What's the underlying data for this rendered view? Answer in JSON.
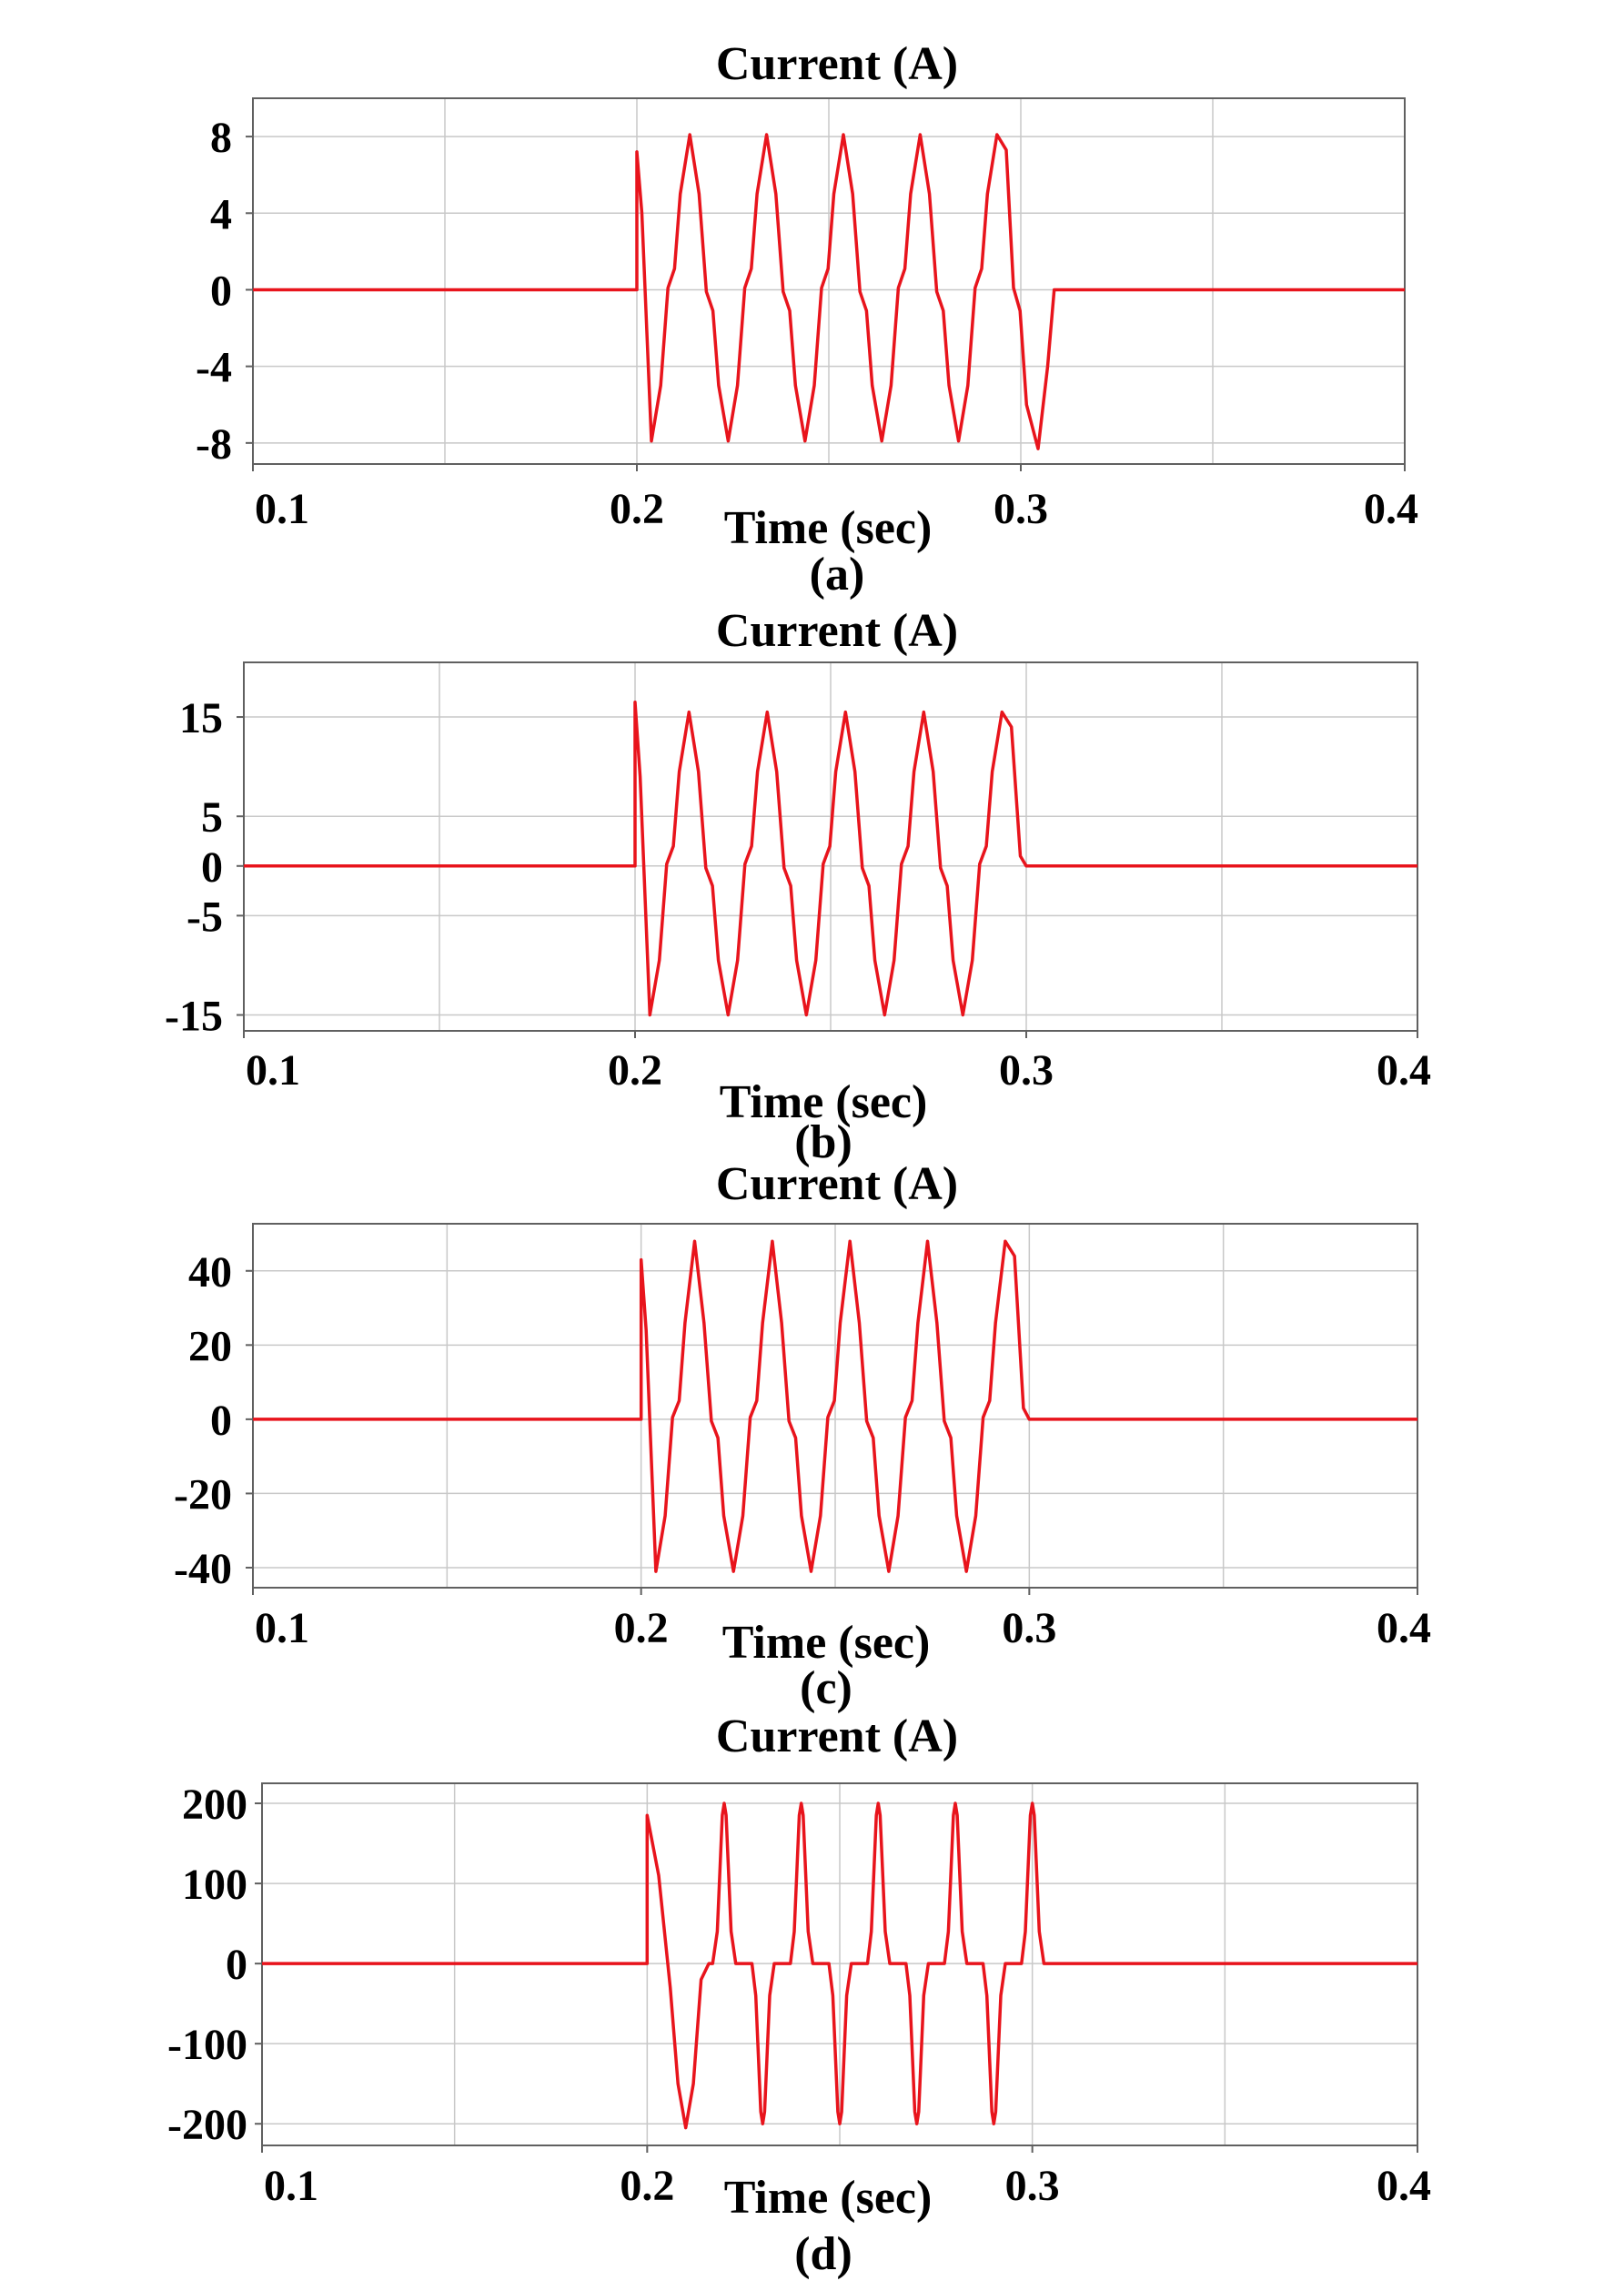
{
  "chart_data": [
    {
      "type": "line",
      "title": "Current (A)",
      "xlabel": "Time (sec)",
      "caption": "(a)",
      "xlim": [
        0.1,
        0.4
      ],
      "ylim": [
        -9.1,
        10.0
      ],
      "x_ticks": [
        "0.1",
        "0.2",
        "0.3",
        "0.4"
      ],
      "y_ticks": [
        {
          "label": "8",
          "value": 8
        },
        {
          "label": "4",
          "value": 4
        },
        {
          "label": "0",
          "value": 0
        },
        {
          "label": "-4",
          "value": -4
        },
        {
          "label": "-8",
          "value": -8
        }
      ],
      "grid": true,
      "color": "#e8141c",
      "points": [
        [
          0.1,
          0
        ],
        [
          0.2,
          0
        ],
        [
          0.2,
          7.2
        ],
        [
          0.2013,
          4
        ],
        [
          0.2038,
          -7.9
        ],
        [
          0.2062,
          -5
        ],
        [
          0.2081,
          0.1
        ],
        [
          0.2098,
          1.1
        ],
        [
          0.2113,
          5
        ],
        [
          0.2138,
          8.1
        ],
        [
          0.2162,
          5
        ],
        [
          0.2181,
          -0.1
        ],
        [
          0.2198,
          -1.1
        ],
        [
          0.2213,
          -5
        ],
        [
          0.2238,
          -7.9
        ],
        [
          0.2262,
          -5
        ],
        [
          0.2281,
          0.1
        ],
        [
          0.2298,
          1.1
        ],
        [
          0.2313,
          5
        ],
        [
          0.2338,
          8.1
        ],
        [
          0.2362,
          5
        ],
        [
          0.2381,
          -0.1
        ],
        [
          0.2398,
          -1.1
        ],
        [
          0.2413,
          -5
        ],
        [
          0.2438,
          -7.9
        ],
        [
          0.2462,
          -5
        ],
        [
          0.2481,
          0.1
        ],
        [
          0.2498,
          1.1
        ],
        [
          0.2513,
          5
        ],
        [
          0.2538,
          8.1
        ],
        [
          0.2562,
          5
        ],
        [
          0.2581,
          -0.1
        ],
        [
          0.2598,
          -1.1
        ],
        [
          0.2613,
          -5
        ],
        [
          0.2638,
          -7.9
        ],
        [
          0.2662,
          -5
        ],
        [
          0.2681,
          0.1
        ],
        [
          0.2698,
          1.1
        ],
        [
          0.2713,
          5
        ],
        [
          0.2738,
          8.1
        ],
        [
          0.2762,
          5
        ],
        [
          0.2781,
          -0.1
        ],
        [
          0.2798,
          -1.1
        ],
        [
          0.2813,
          -5
        ],
        [
          0.2838,
          -7.9
        ],
        [
          0.2862,
          -5
        ],
        [
          0.2881,
          0.1
        ],
        [
          0.2898,
          1.1
        ],
        [
          0.2913,
          5
        ],
        [
          0.2938,
          8.1
        ],
        [
          0.2962,
          7.3
        ],
        [
          0.2981,
          0.1
        ],
        [
          0.2998,
          -1.1
        ],
        [
          0.3015,
          -6
        ],
        [
          0.3045,
          -8.3
        ],
        [
          0.307,
          -4
        ],
        [
          0.3087,
          0
        ],
        [
          0.4,
          0
        ]
      ]
    },
    {
      "type": "line",
      "title": "Current (A)",
      "xlabel": "Time (sec)",
      "caption": "(b)",
      "xlim": [
        0.1,
        0.4
      ],
      "ylim": [
        -16.6,
        20.5
      ],
      "x_ticks": [
        "0.1",
        "0.2",
        "0.3",
        "0.4"
      ],
      "y_ticks": [
        {
          "label": "15",
          "value": 15
        },
        {
          "label": "5",
          "value": 5
        },
        {
          "label": "0",
          "value": 0
        },
        {
          "label": "-5",
          "value": -5
        },
        {
          "label": "-15",
          "value": -15
        }
      ],
      "grid": true,
      "color": "#e8141c",
      "points": [
        [
          0.1,
          0
        ],
        [
          0.2,
          0
        ],
        [
          0.2,
          16.5
        ],
        [
          0.2013,
          9
        ],
        [
          0.2038,
          -15
        ],
        [
          0.2062,
          -9.5
        ],
        [
          0.2081,
          0.2
        ],
        [
          0.2098,
          2
        ],
        [
          0.2113,
          9.5
        ],
        [
          0.2138,
          15.5
        ],
        [
          0.2162,
          9.5
        ],
        [
          0.2181,
          -0.2
        ],
        [
          0.2198,
          -2
        ],
        [
          0.2213,
          -9.5
        ],
        [
          0.2238,
          -15
        ],
        [
          0.2262,
          -9.5
        ],
        [
          0.2281,
          0.2
        ],
        [
          0.2298,
          2
        ],
        [
          0.2313,
          9.5
        ],
        [
          0.2338,
          15.5
        ],
        [
          0.2362,
          9.5
        ],
        [
          0.2381,
          -0.2
        ],
        [
          0.2398,
          -2
        ],
        [
          0.2413,
          -9.5
        ],
        [
          0.2438,
          -15
        ],
        [
          0.2462,
          -9.5
        ],
        [
          0.2481,
          0.2
        ],
        [
          0.2498,
          2
        ],
        [
          0.2513,
          9.5
        ],
        [
          0.2538,
          15.5
        ],
        [
          0.2562,
          9.5
        ],
        [
          0.2581,
          -0.2
        ],
        [
          0.2598,
          -2
        ],
        [
          0.2613,
          -9.5
        ],
        [
          0.2638,
          -15
        ],
        [
          0.2662,
          -9.5
        ],
        [
          0.2681,
          0.2
        ],
        [
          0.2698,
          2
        ],
        [
          0.2713,
          9.5
        ],
        [
          0.2738,
          15.5
        ],
        [
          0.2762,
          9.5
        ],
        [
          0.2781,
          -0.2
        ],
        [
          0.2798,
          -2
        ],
        [
          0.2813,
          -9.5
        ],
        [
          0.2838,
          -15
        ],
        [
          0.2862,
          -9.5
        ],
        [
          0.2881,
          0.2
        ],
        [
          0.2898,
          2
        ],
        [
          0.2913,
          9.5
        ],
        [
          0.2938,
          15.5
        ],
        [
          0.2962,
          14
        ],
        [
          0.2985,
          1
        ],
        [
          0.3,
          0
        ],
        [
          0.4,
          0
        ]
      ]
    },
    {
      "type": "line",
      "title": "Current (A)",
      "xlabel": "Time (sec)",
      "caption": "(c)",
      "xlim": [
        0.1,
        0.4
      ],
      "ylim": [
        -45.4,
        52.7
      ],
      "x_ticks": [
        "0.1",
        "0.2",
        "0.3",
        "0.4"
      ],
      "y_ticks": [
        {
          "label": "40",
          "value": 40
        },
        {
          "label": "20",
          "value": 20
        },
        {
          "label": "0",
          "value": 0
        },
        {
          "label": "-20",
          "value": -20
        },
        {
          "label": "-40",
          "value": -40
        }
      ],
      "grid": true,
      "color": "#e8141c",
      "points": [
        [
          0.1,
          0
        ],
        [
          0.2,
          0
        ],
        [
          0.2,
          43
        ],
        [
          0.2013,
          24
        ],
        [
          0.2038,
          -41
        ],
        [
          0.2062,
          -26
        ],
        [
          0.2081,
          0.5
        ],
        [
          0.2098,
          5
        ],
        [
          0.2113,
          26
        ],
        [
          0.2138,
          48
        ],
        [
          0.2162,
          26
        ],
        [
          0.2181,
          -0.5
        ],
        [
          0.2198,
          -5
        ],
        [
          0.2213,
          -26
        ],
        [
          0.2238,
          -41
        ],
        [
          0.2262,
          -26
        ],
        [
          0.2281,
          0.5
        ],
        [
          0.2298,
          5
        ],
        [
          0.2313,
          26
        ],
        [
          0.2338,
          48
        ],
        [
          0.2362,
          26
        ],
        [
          0.2381,
          -0.5
        ],
        [
          0.2398,
          -5
        ],
        [
          0.2413,
          -26
        ],
        [
          0.2438,
          -41
        ],
        [
          0.2462,
          -26
        ],
        [
          0.2481,
          0.5
        ],
        [
          0.2498,
          5
        ],
        [
          0.2513,
          26
        ],
        [
          0.2538,
          48
        ],
        [
          0.2562,
          26
        ],
        [
          0.2581,
          -0.5
        ],
        [
          0.2598,
          -5
        ],
        [
          0.2613,
          -26
        ],
        [
          0.2638,
          -41
        ],
        [
          0.2662,
          -26
        ],
        [
          0.2681,
          0.5
        ],
        [
          0.2698,
          5
        ],
        [
          0.2713,
          26
        ],
        [
          0.2738,
          48
        ],
        [
          0.2762,
          26
        ],
        [
          0.2781,
          -0.5
        ],
        [
          0.2798,
          -5
        ],
        [
          0.2813,
          -26
        ],
        [
          0.2838,
          -41
        ],
        [
          0.2862,
          -26
        ],
        [
          0.2881,
          0.5
        ],
        [
          0.2898,
          5
        ],
        [
          0.2913,
          26
        ],
        [
          0.2938,
          48
        ],
        [
          0.2962,
          44
        ],
        [
          0.2985,
          3
        ],
        [
          0.3,
          0
        ],
        [
          0.4,
          0
        ]
      ]
    },
    {
      "type": "line",
      "title": "Current (A)",
      "xlabel": "Time (sec)",
      "caption": "(d)",
      "xlim": [
        0.1,
        0.4
      ],
      "ylim": [
        -227,
        225
      ],
      "x_ticks": [
        "0.1",
        "0.2",
        "0.3",
        "0.4"
      ],
      "y_ticks": [
        {
          "label": "200",
          "value": 200
        },
        {
          "label": "100",
          "value": 100
        },
        {
          "label": "0",
          "value": 0
        },
        {
          "label": "-100",
          "value": -100
        },
        {
          "label": "-200",
          "value": -200
        }
      ],
      "grid": true,
      "color": "#e8141c",
      "points": [
        [
          0.1,
          0
        ],
        [
          0.2,
          0
        ],
        [
          0.2,
          185
        ],
        [
          0.203,
          110
        ],
        [
          0.206,
          -30
        ],
        [
          0.208,
          -150
        ],
        [
          0.21,
          -205
        ],
        [
          0.212,
          -150
        ],
        [
          0.214,
          -20
        ],
        [
          0.216,
          0
        ],
        [
          0.217,
          0
        ],
        [
          0.2182,
          40
        ],
        [
          0.2195,
          185
        ],
        [
          0.22,
          200
        ],
        [
          0.2205,
          185
        ],
        [
          0.2218,
          40
        ],
        [
          0.223,
          0
        ],
        [
          0.2272,
          0
        ],
        [
          0.2282,
          -40
        ],
        [
          0.2295,
          -185
        ],
        [
          0.23,
          -200
        ],
        [
          0.2305,
          -185
        ],
        [
          0.2318,
          -40
        ],
        [
          0.233,
          0
        ],
        [
          0.2372,
          0
        ],
        [
          0.2382,
          40
        ],
        [
          0.2395,
          185
        ],
        [
          0.24,
          200
        ],
        [
          0.2405,
          185
        ],
        [
          0.2418,
          40
        ],
        [
          0.243,
          0
        ],
        [
          0.2472,
          0
        ],
        [
          0.2482,
          -40
        ],
        [
          0.2495,
          -185
        ],
        [
          0.25,
          -200
        ],
        [
          0.2505,
          -185
        ],
        [
          0.2518,
          -40
        ],
        [
          0.253,
          0
        ],
        [
          0.2572,
          0
        ],
        [
          0.2582,
          40
        ],
        [
          0.2595,
          185
        ],
        [
          0.26,
          200
        ],
        [
          0.2605,
          185
        ],
        [
          0.2618,
          40
        ],
        [
          0.263,
          0
        ],
        [
          0.2672,
          0
        ],
        [
          0.2682,
          -40
        ],
        [
          0.2695,
          -185
        ],
        [
          0.27,
          -200
        ],
        [
          0.2705,
          -185
        ],
        [
          0.2718,
          -40
        ],
        [
          0.273,
          0
        ],
        [
          0.2772,
          0
        ],
        [
          0.2782,
          40
        ],
        [
          0.2795,
          185
        ],
        [
          0.28,
          200
        ],
        [
          0.2805,
          185
        ],
        [
          0.2818,
          40
        ],
        [
          0.283,
          0
        ],
        [
          0.2872,
          0
        ],
        [
          0.2882,
          -40
        ],
        [
          0.2895,
          -185
        ],
        [
          0.29,
          -200
        ],
        [
          0.2905,
          -185
        ],
        [
          0.2918,
          -40
        ],
        [
          0.293,
          0
        ],
        [
          0.2972,
          0
        ],
        [
          0.2982,
          40
        ],
        [
          0.2995,
          185
        ],
        [
          0.3,
          200
        ],
        [
          0.3005,
          185
        ],
        [
          0.3018,
          40
        ],
        [
          0.303,
          0
        ],
        [
          0.4,
          0
        ]
      ]
    }
  ]
}
